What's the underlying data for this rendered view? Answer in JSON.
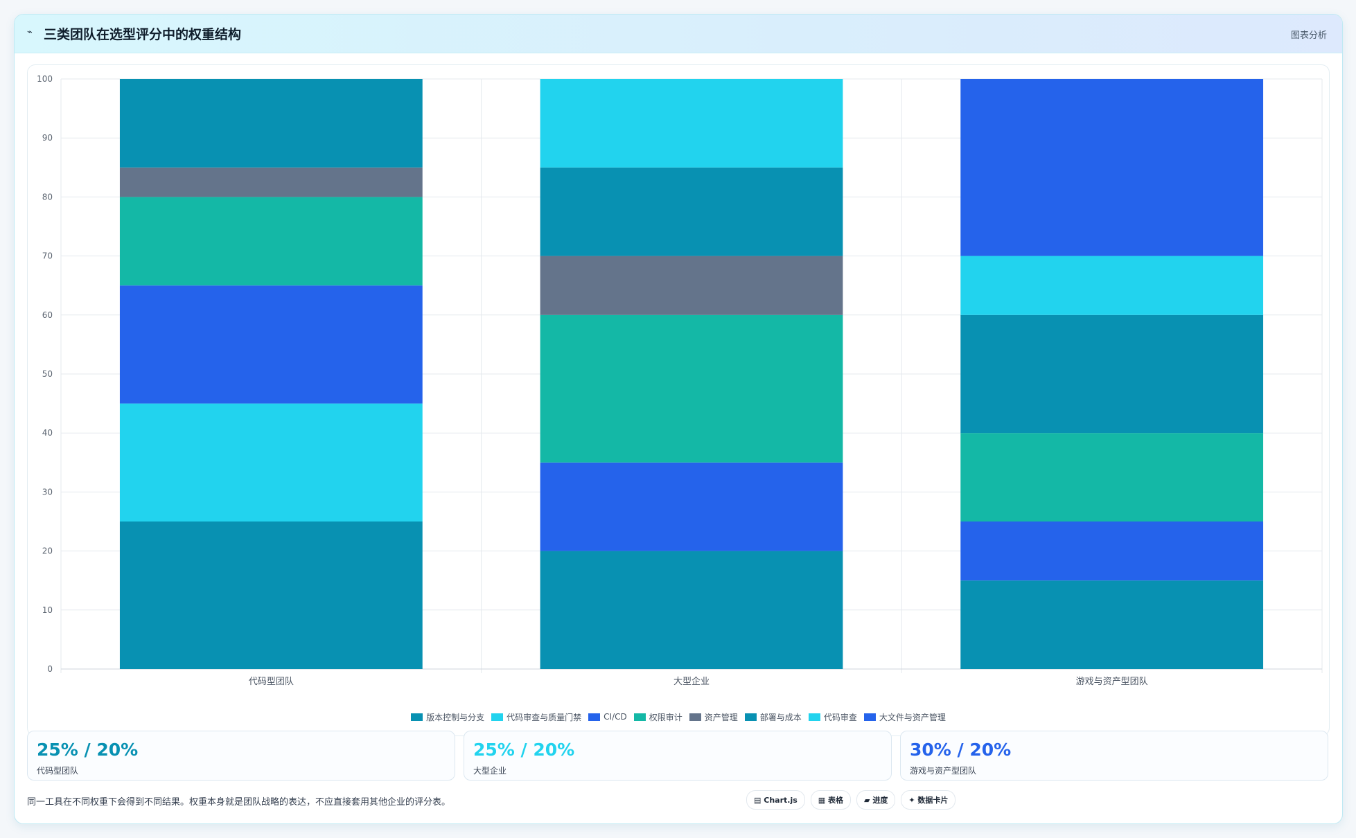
{
  "header": {
    "icon": "chart-line-icon",
    "title": "三类团队在选型评分中的权重结构",
    "right_label": "图表分析"
  },
  "chart_data": {
    "type": "bar",
    "stacked": true,
    "categories": [
      "代码型团队",
      "大型企业",
      "游戏与资产型团队"
    ],
    "ylim": [
      0,
      100
    ],
    "yticks": [
      0,
      10,
      20,
      30,
      40,
      50,
      60,
      70,
      80,
      90,
      100
    ],
    "grid": true,
    "legend_position": "bottom",
    "series": [
      {
        "name": "版本控制与分支",
        "color": "#0891b2",
        "values": [
          25,
          20,
          15
        ]
      },
      {
        "name": "代码审查与质量门禁",
        "color": "#22d3ee",
        "values": [
          20,
          0,
          0
        ]
      },
      {
        "name": "CI/CD",
        "color": "#2563eb",
        "values": [
          20,
          15,
          10
        ]
      },
      {
        "name": "权限审计",
        "color": "#14b8a6",
        "values": [
          15,
          25,
          15
        ]
      },
      {
        "name": "资产管理",
        "color": "#64748b",
        "values": [
          5,
          10,
          0
        ]
      },
      {
        "name": "部署与成本",
        "color": "#0891b2",
        "values": [
          15,
          15,
          20
        ]
      },
      {
        "name": "代码审查",
        "color": "#22d3ee",
        "values": [
          0,
          15,
          10
        ]
      },
      {
        "name": "大文件与资产管理",
        "color": "#2563eb",
        "values": [
          0,
          0,
          30
        ]
      }
    ]
  },
  "stats": [
    {
      "value": "25% / 20%",
      "label": "代码型团队",
      "color": "#0891b2"
    },
    {
      "value": "25% / 20%",
      "label": "大型企业",
      "color": "#22d3ee"
    },
    {
      "value": "30% / 20%",
      "label": "游戏与资产型团队",
      "color": "#2563eb"
    }
  ],
  "footer": {
    "note": "同一工具在不同权重下会得到不同结果。权重本身就是团队战略的表达，不应直接套用其他企业的评分表。"
  },
  "tags": [
    {
      "icon": "chart-icon",
      "glyph": "▤",
      "label": "Chart.js"
    },
    {
      "icon": "table-icon",
      "glyph": "▦",
      "label": "表格"
    },
    {
      "icon": "progress-icon",
      "glyph": "▰",
      "label": "进度"
    },
    {
      "icon": "data-card-icon",
      "glyph": "✦",
      "label": "数据卡片"
    }
  ]
}
